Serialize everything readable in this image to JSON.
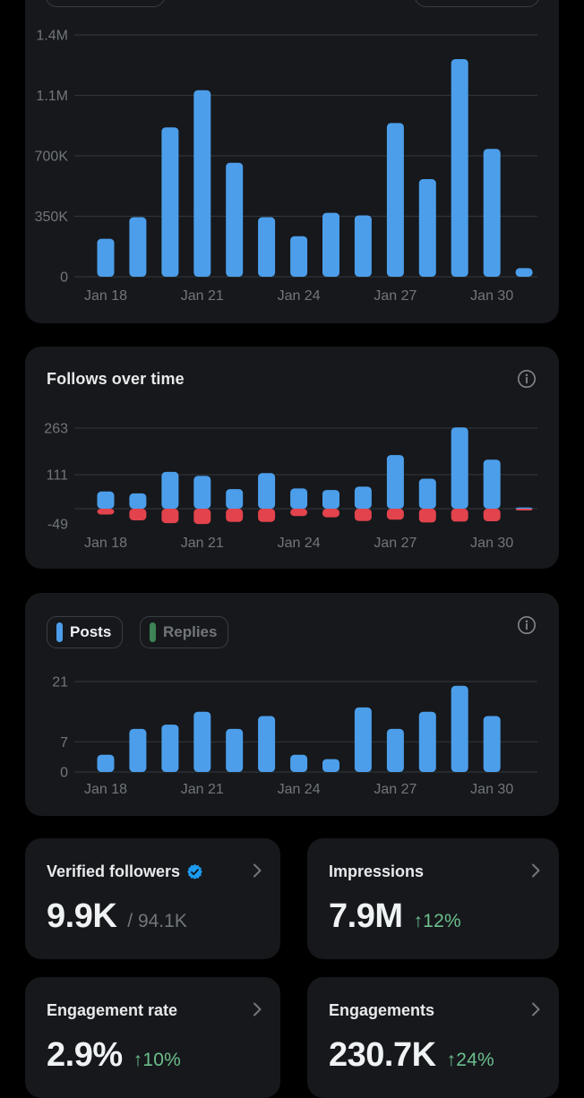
{
  "colors": {
    "background": "#000000",
    "card": "#16181C",
    "bar_blue": "#4C9EEA",
    "bar_red": "#E2434C",
    "replies_green": "#3E8456",
    "delta_green": "#6CBF8C",
    "text_primary": "#E7E9EA",
    "text_secondary": "#71767B",
    "gridline": "#2F3336",
    "badge_blue": "#1D9BF0"
  },
  "chart_data": [
    {
      "type": "bar",
      "name": "impressions-over-time",
      "title": "",
      "categories": [
        "Jan 18",
        "Jan 19",
        "Jan 20",
        "Jan 21",
        "Jan 22",
        "Jan 23",
        "Jan 24",
        "Jan 25",
        "Jan 26",
        "Jan 27",
        "Jan 28",
        "Jan 29",
        "Jan 30",
        "Jan 31"
      ],
      "series": [
        {
          "name": "Impressions",
          "color": "#4C9EEA",
          "values": [
            220000,
            345000,
            865000,
            1080000,
            660000,
            345000,
            235000,
            370000,
            355000,
            890000,
            565000,
            1260000,
            740000,
            50000
          ]
        }
      ],
      "ylim": [
        0,
        1400000
      ],
      "yticks": [
        {
          "value": 0,
          "label": "0"
        },
        {
          "value": 350000,
          "label": "350K"
        },
        {
          "value": 700000,
          "label": "700K"
        },
        {
          "value": 1050000,
          "label": "1.1M"
        },
        {
          "value": 1400000,
          "label": "1.4M"
        }
      ],
      "xtick_slots": [
        0,
        3,
        6,
        9,
        12
      ],
      "xtick_labels": [
        "Jan 18",
        "Jan 21",
        "Jan 24",
        "Jan 27",
        "Jan 30"
      ],
      "grid": true,
      "legend_position": "none"
    },
    {
      "type": "bar",
      "name": "follows-over-time",
      "title": "Follows over time",
      "categories": [
        "Jan 18",
        "Jan 19",
        "Jan 20",
        "Jan 21",
        "Jan 22",
        "Jan 23",
        "Jan 24",
        "Jan 25",
        "Jan 26",
        "Jan 27",
        "Jan 28",
        "Jan 29",
        "Jan 30",
        "Jan 31"
      ],
      "series": [
        {
          "name": "Follows",
          "color": "#4C9EEA",
          "values": [
            56,
            50,
            120,
            107,
            64,
            116,
            66,
            61,
            72,
            175,
            98,
            265,
            160,
            4
          ]
        },
        {
          "name": "Unfollows",
          "color": "#E2434C",
          "values": [
            -19,
            -38,
            -47,
            -50,
            -43,
            -43,
            -24,
            -28,
            -40,
            -36,
            -45,
            -42,
            -41,
            -4
          ]
        }
      ],
      "ylim": [
        -60,
        280
      ],
      "yticks": [
        {
          "value": 263,
          "label": "263"
        },
        {
          "value": 111,
          "label": "111"
        },
        {
          "value": 0,
          "label": ""
        },
        {
          "value": -49,
          "label": "-49",
          "line": false
        }
      ],
      "xtick_slots": [
        0,
        3,
        6,
        9,
        12
      ],
      "xtick_labels": [
        "Jan 18",
        "Jan 21",
        "Jan 24",
        "Jan 27",
        "Jan 30"
      ],
      "grid": true,
      "legend_position": "none"
    },
    {
      "type": "bar",
      "name": "posts-and-replies-over-time",
      "title": "",
      "legend": [
        {
          "label": "Posts",
          "color": "#4C9EEA",
          "selected": true
        },
        {
          "label": "Replies",
          "color": "#3E8456",
          "selected": false
        }
      ],
      "categories": [
        "Jan 18",
        "Jan 19",
        "Jan 20",
        "Jan 21",
        "Jan 22",
        "Jan 23",
        "Jan 24",
        "Jan 25",
        "Jan 26",
        "Jan 27",
        "Jan 28",
        "Jan 29",
        "Jan 30",
        "Jan 31"
      ],
      "series": [
        {
          "name": "Posts",
          "color": "#4C9EEA",
          "values": [
            4,
            10,
            11,
            14,
            10,
            13,
            4,
            3,
            15,
            10,
            14,
            20,
            13,
            0
          ]
        },
        {
          "name": "Replies",
          "color": "#3E8456",
          "values": [
            0,
            0,
            0,
            0,
            0,
            0,
            0,
            0,
            0,
            0,
            0,
            0,
            0,
            0
          ]
        }
      ],
      "ylim": [
        0,
        22
      ],
      "yticks": [
        {
          "value": 21,
          "label": "21"
        },
        {
          "value": 7,
          "label": "7"
        },
        {
          "value": 0,
          "label": "0"
        }
      ],
      "xtick_slots": [
        0,
        3,
        6,
        9,
        12
      ],
      "xtick_labels": [
        "Jan 18",
        "Jan 21",
        "Jan 24",
        "Jan 27",
        "Jan 30"
      ],
      "grid": true,
      "legend_position": "top-left"
    }
  ],
  "stat_cards": [
    {
      "title": "Verified followers",
      "value": "9.9K",
      "secondary": "/ 94.1K"
    },
    {
      "title": "Impressions",
      "value": "7.9M",
      "delta": "↑12%"
    },
    {
      "title": "Engagement rate",
      "value": "2.9%",
      "delta": "↑10%"
    },
    {
      "title": "Engagements",
      "value": "230.7K",
      "delta": "↑24%"
    }
  ]
}
